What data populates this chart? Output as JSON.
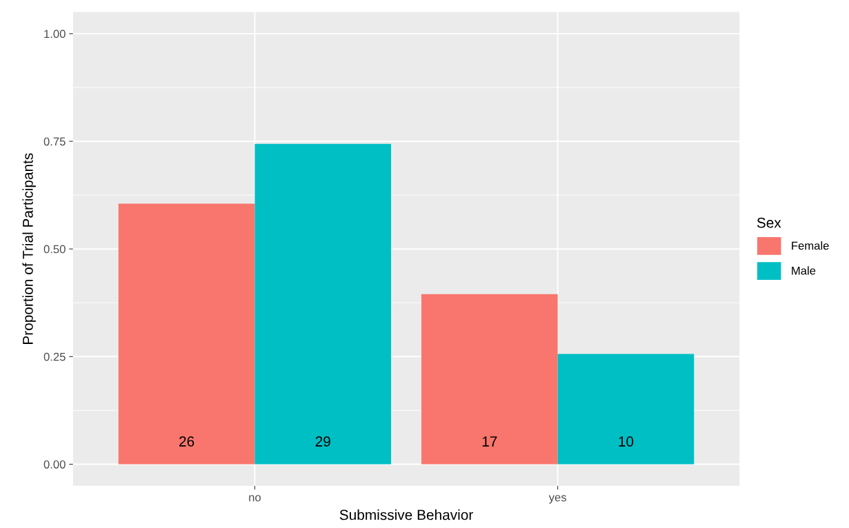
{
  "chart_data": {
    "type": "bar",
    "xlabel": "Submissive Behavior",
    "ylabel": "Proportion of Trial Participants",
    "legend_title": "Sex",
    "categories": [
      "no",
      "yes"
    ],
    "series": [
      {
        "name": "Female",
        "color": "#f8766d",
        "values": [
          0.605,
          0.395
        ]
      },
      {
        "name": "Male",
        "color": "#00bfc4",
        "values": [
          0.744,
          0.256
        ]
      }
    ],
    "annotations": [
      "26",
      "17",
      "29",
      "10"
    ],
    "ylim": [
      -0.05,
      1.05
    ],
    "yticks": [
      {
        "value": 0,
        "label": "0.00"
      },
      {
        "value": 0.25,
        "label": "0.25"
      },
      {
        "value": 0.5,
        "label": "0.50"
      },
      {
        "value": 0.75,
        "label": "0.75"
      },
      {
        "value": 1,
        "label": "1.00"
      }
    ],
    "grid": true,
    "legend": "right"
  }
}
